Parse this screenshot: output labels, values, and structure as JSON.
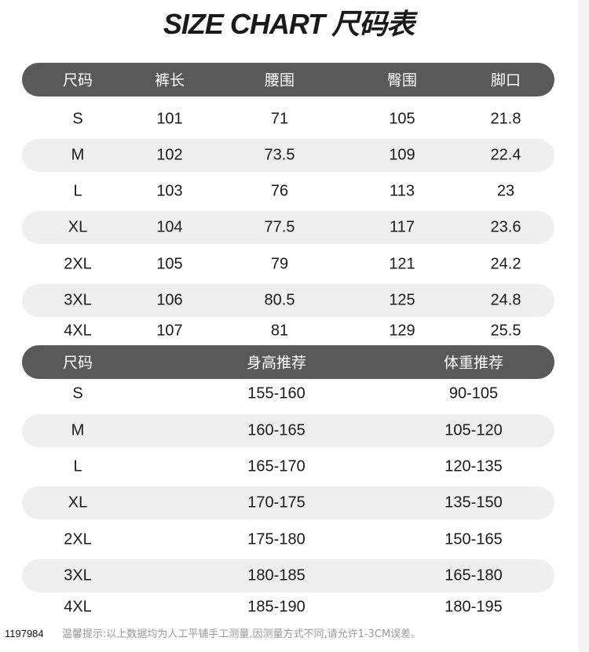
{
  "title": "SIZE CHART 尺码表",
  "table1": {
    "headers": [
      "尺码",
      "裤长",
      "腰围",
      "臀围",
      "脚口"
    ],
    "rows": [
      [
        "S",
        "101",
        "71",
        "105",
        "21.8"
      ],
      [
        "M",
        "102",
        "73.5",
        "109",
        "22.4"
      ],
      [
        "L",
        "103",
        "76",
        "113",
        "23"
      ],
      [
        "XL",
        "104",
        "77.5",
        "117",
        "23.6"
      ],
      [
        "2XL",
        "105",
        "79",
        "121",
        "24.2"
      ],
      [
        "3XL",
        "106",
        "80.5",
        "125",
        "24.8"
      ],
      [
        "4XL",
        "107",
        "81",
        "129",
        "25.5"
      ]
    ]
  },
  "table2": {
    "headers": [
      "尺码",
      "身高推荐",
      "体重推荐"
    ],
    "rows": [
      [
        "S",
        "155-160",
        "90-105"
      ],
      [
        "M",
        "160-165",
        "105-120"
      ],
      [
        "L",
        "165-170",
        "120-135"
      ],
      [
        "XL",
        "170-175",
        "135-150"
      ],
      [
        "2XL",
        "175-180",
        "150-165"
      ],
      [
        "3XL",
        "180-185",
        "165-180"
      ],
      [
        "4XL",
        "185-190",
        "180-195"
      ]
    ]
  },
  "note": "温馨提示:以上数据均为人工平铺手工测量,因测量方式不同,请允许1-3CM误差。",
  "product_code": "1197984",
  "colors": {
    "header_bg": "#595959",
    "band_bg": "#efefef"
  }
}
